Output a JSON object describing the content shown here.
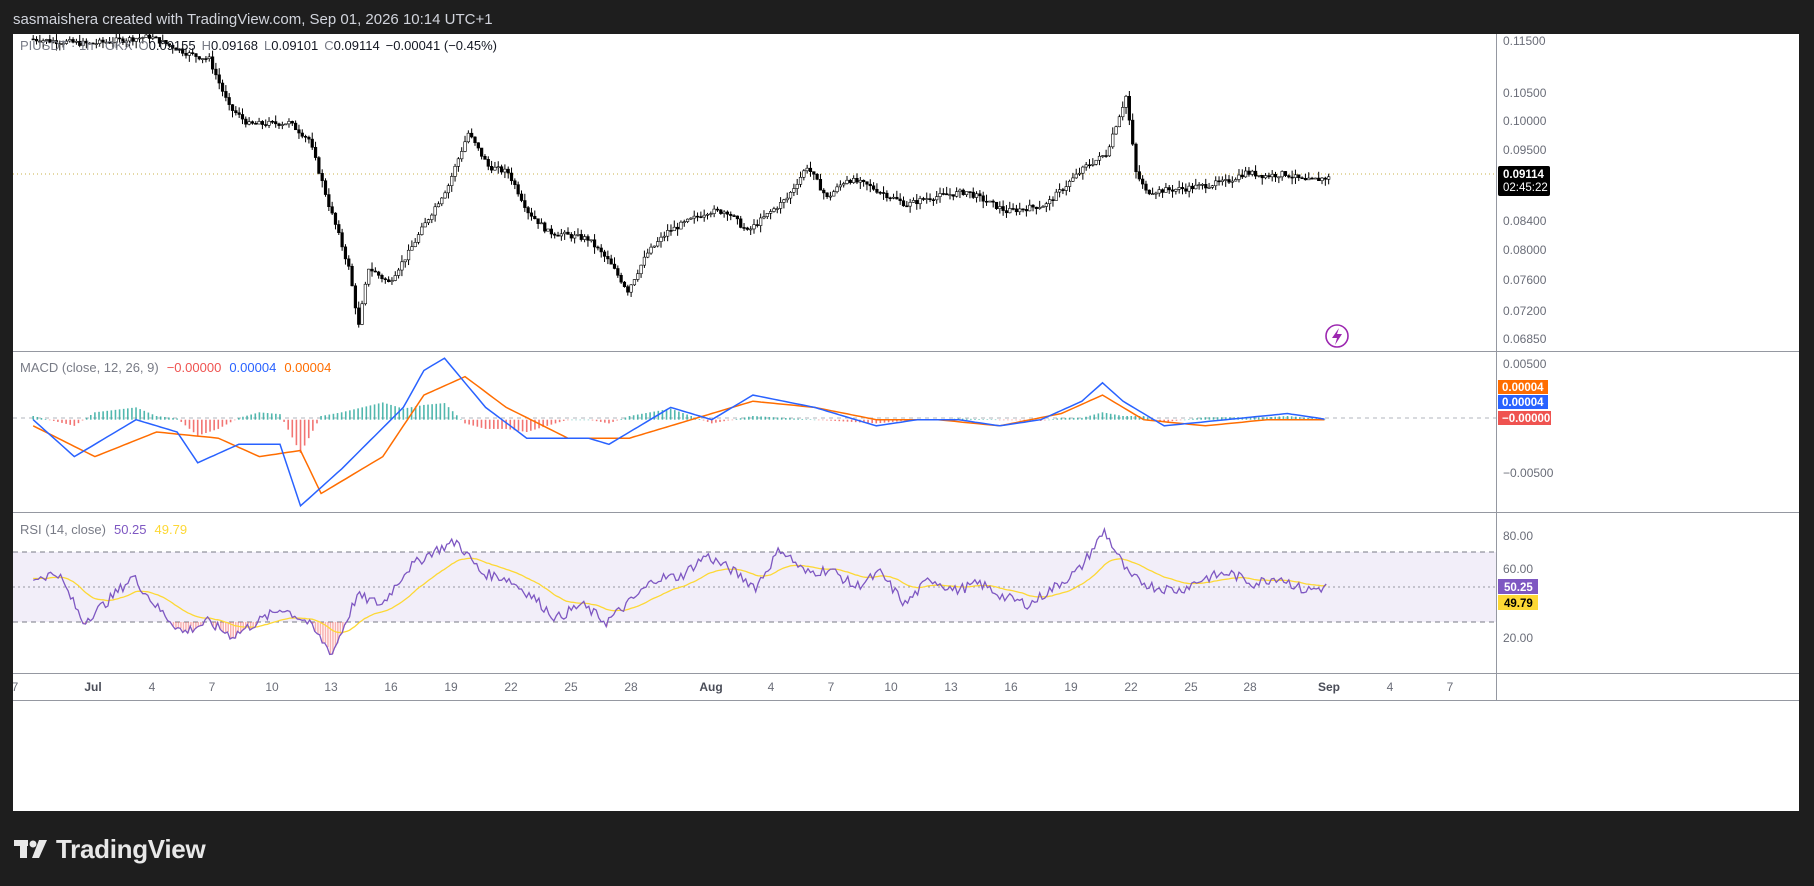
{
  "header": {
    "attribution": "sasmaishera created with TradingView.com, Sep 01, 2026 10:14 UTC+1"
  },
  "legend": {
    "symbol": "PIUSDT",
    "interval": "1h",
    "exchange": "OKX",
    "open_label": "O",
    "open": "0.09155",
    "high_label": "H",
    "high": "0.09168",
    "low_label": "L",
    "low": "0.09101",
    "close_label": "C",
    "close": "0.09114",
    "change": "−0.00041 (−0.45%)"
  },
  "macd_legend": {
    "title": "MACD (close, 12, 26, 9)",
    "hist": "−0.00000",
    "macd": "0.00004",
    "signal": "0.00004"
  },
  "rsi_legend": {
    "title": "RSI (14, close)",
    "rsi": "50.25",
    "ma": "49.79"
  },
  "price_tag": {
    "value": "0.09114",
    "countdown": "02:45:22"
  },
  "macd_tags": {
    "signal": "0.00004",
    "macd": "0.00004",
    "hist": "−0.00000"
  },
  "rsi_tags": {
    "rsi": "50.25",
    "ma": "49.79"
  },
  "axes": {
    "price_ticks": [
      "0.11500",
      "0.10500",
      "0.10000",
      "0.09500",
      "0.08400",
      "0.08000",
      "0.07600",
      "0.07200",
      "0.06850"
    ],
    "macd_ticks": [
      "0.00500",
      "−0.00500"
    ],
    "rsi_ticks": [
      "80.00",
      "60.00",
      "20.00"
    ],
    "time_ticks": [
      "7",
      "Jul",
      "4",
      "7",
      "10",
      "13",
      "16",
      "19",
      "22",
      "25",
      "28",
      "Aug",
      "4",
      "7",
      "10",
      "13",
      "16",
      "19",
      "22",
      "25",
      "28",
      "Sep",
      "4",
      "7"
    ]
  },
  "colors": {
    "up": "#26a69a",
    "down": "#ef5350",
    "candle": "#000000",
    "macd_line": "#2962ff",
    "signal_line": "#ff6d00",
    "rsi_line": "#7e57c2",
    "rsi_ma": "#fdd835",
    "rsi_band": "#7e57c2"
  },
  "chart_data": {
    "type": "candlestick",
    "symbol": "PIUSDT",
    "interval": "1h",
    "exchange": "OKX",
    "y_scale": "log",
    "ylim": [
      0.0675,
      0.117
    ],
    "x_ticks": [
      "Jul 1",
      "Jul 4",
      "Jul 7",
      "Jul 10",
      "Jul 13",
      "Jul 16",
      "Jul 19",
      "Jul 22",
      "Jul 25",
      "Jul 28",
      "Aug 1",
      "Aug 4",
      "Aug 7",
      "Aug 10",
      "Aug 13",
      "Aug 16",
      "Aug 19",
      "Aug 22",
      "Aug 25",
      "Aug 28",
      "Sep 1"
    ],
    "price_path": [
      [
        "Jun 28",
        0.116
      ],
      [
        "Jul 1",
        0.115
      ],
      [
        "Jul 4",
        0.1165
      ],
      [
        "Jul 6",
        0.113
      ],
      [
        "Jul 7",
        0.112
      ],
      [
        "Jul 8",
        0.103
      ],
      [
        "Jul 9",
        0.1
      ],
      [
        "Jul 11",
        0.1003
      ],
      [
        "Jul 12",
        0.0975
      ],
      [
        "Jul 13",
        0.087
      ],
      [
        "Jul 14",
        0.078
      ],
      [
        "Jul 14 12h",
        0.0705
      ],
      [
        "Jul 15",
        0.078
      ],
      [
        "Jul 16",
        0.076
      ],
      [
        "Jul 17",
        0.08
      ],
      [
        "Jul 18",
        0.085
      ],
      [
        "Jul 19",
        0.09
      ],
      [
        "Jul 20",
        0.0985
      ],
      [
        "Jul 21",
        0.093
      ],
      [
        "Jul 22",
        0.092
      ],
      [
        "Jul 23",
        0.086
      ],
      [
        "Jul 24",
        0.083
      ],
      [
        "Jul 26",
        0.082
      ],
      [
        "Jul 27",
        0.079
      ],
      [
        "Jul 28",
        0.075
      ],
      [
        "Jul 29",
        0.08
      ],
      [
        "Jul 30",
        0.083
      ],
      [
        "Aug 1",
        0.086
      ],
      [
        "Aug 2",
        0.086
      ],
      [
        "Aug 3",
        0.083
      ],
      [
        "Aug 5",
        0.088
      ],
      [
        "Aug 6",
        0.093
      ],
      [
        "Aug 7",
        0.088
      ],
      [
        "Aug 8",
        0.091
      ],
      [
        "Aug 9",
        0.09
      ],
      [
        "Aug 11",
        0.087
      ],
      [
        "Aug 12",
        0.088
      ],
      [
        "Aug 14",
        0.089
      ],
      [
        "Aug 16",
        0.086
      ],
      [
        "Aug 18",
        0.087
      ],
      [
        "Aug 20",
        0.093
      ],
      [
        "Aug 21",
        0.095
      ],
      [
        "Aug 22",
        0.105
      ],
      [
        "Aug 22 12h",
        0.092
      ],
      [
        "Aug 23",
        0.089
      ],
      [
        "Aug 25",
        0.0895
      ],
      [
        "Aug 27",
        0.0905
      ],
      [
        "Aug 28",
        0.092
      ],
      [
        "Aug 29",
        0.0915
      ],
      [
        "Aug 30",
        0.0918
      ],
      [
        "Aug 31",
        0.0906
      ],
      [
        "Sep 1",
        0.09114
      ]
    ],
    "last": {
      "open": 0.09155,
      "high": 0.09168,
      "low": 0.09101,
      "close": 0.09114,
      "change": -0.00041,
      "change_pct": -0.45
    },
    "indicators": {
      "macd": {
        "params": [
          12,
          26,
          9
        ],
        "ylim": [
          -0.0075,
          0.0055
        ],
        "macd_path": [
          [
            0,
            0.0
          ],
          [
            2,
            -0.003
          ],
          [
            5,
            0.0
          ],
          [
            7,
            -0.001
          ],
          [
            8,
            -0.0035
          ],
          [
            10,
            -0.002
          ],
          [
            12,
            -0.002
          ],
          [
            13,
            -0.007
          ],
          [
            15,
            -0.004
          ],
          [
            18,
            0.001
          ],
          [
            19,
            0.004
          ],
          [
            20,
            0.005
          ],
          [
            22,
            0.001
          ],
          [
            24,
            -0.0015
          ],
          [
            27,
            -0.0015
          ],
          [
            28,
            -0.002
          ],
          [
            30,
            0.0
          ],
          [
            31,
            0.001
          ],
          [
            33,
            0.0
          ],
          [
            35,
            0.002
          ],
          [
            38,
            0.001
          ],
          [
            41,
            -0.0005
          ],
          [
            43,
            0.0
          ],
          [
            45,
            0.0
          ],
          [
            47,
            -0.0005
          ],
          [
            49,
            0.0
          ],
          [
            51,
            0.0015
          ],
          [
            52,
            0.003
          ],
          [
            53,
            0.0015
          ],
          [
            55,
            -0.0005
          ],
          [
            58,
            0.0
          ],
          [
            61,
            0.0005
          ],
          [
            63,
            0.0
          ]
        ],
        "signal_path": [
          [
            0,
            -0.0005
          ],
          [
            3,
            -0.003
          ],
          [
            6,
            -0.001
          ],
          [
            9,
            -0.0015
          ],
          [
            11,
            -0.003
          ],
          [
            13,
            -0.0025
          ],
          [
            14,
            -0.006
          ],
          [
            17,
            -0.003
          ],
          [
            19,
            0.002
          ],
          [
            21,
            0.0035
          ],
          [
            23,
            0.001
          ],
          [
            26,
            -0.0015
          ],
          [
            29,
            -0.0015
          ],
          [
            32,
            0.0
          ],
          [
            35,
            0.0015
          ],
          [
            38,
            0.001
          ],
          [
            41,
            0.0
          ],
          [
            44,
            0.0
          ],
          [
            47,
            -0.0005
          ],
          [
            50,
            0.0005
          ],
          [
            52,
            0.002
          ],
          [
            54,
            0.0
          ],
          [
            57,
            -0.0005
          ],
          [
            60,
            0.0
          ],
          [
            63,
            0.0
          ]
        ],
        "hist": -0.0,
        "macd": 4e-05,
        "signal": 4e-05
      },
      "rsi": {
        "params": [
          14
        ],
        "ylim": [
          0,
          100
        ],
        "bands": [
          30,
          70
        ],
        "mid": 50,
        "rsi_path": [
          [
            0,
            55
          ],
          [
            1,
            58
          ],
          [
            2,
            30
          ],
          [
            3,
            42
          ],
          [
            4,
            56
          ],
          [
            5,
            38
          ],
          [
            6,
            24
          ],
          [
            7,
            30
          ],
          [
            8,
            22
          ],
          [
            9,
            30
          ],
          [
            10,
            38
          ],
          [
            11,
            30
          ],
          [
            12,
            12
          ],
          [
            13,
            45
          ],
          [
            14,
            40
          ],
          [
            15,
            60
          ],
          [
            16,
            70
          ],
          [
            17,
            76
          ],
          [
            18,
            58
          ],
          [
            19,
            55
          ],
          [
            20,
            45
          ],
          [
            21,
            32
          ],
          [
            22,
            40
          ],
          [
            23,
            30
          ],
          [
            24,
            42
          ],
          [
            25,
            55
          ],
          [
            26,
            56
          ],
          [
            27,
            68
          ],
          [
            28,
            60
          ],
          [
            29,
            50
          ],
          [
            30,
            72
          ],
          [
            31,
            58
          ],
          [
            32,
            60
          ],
          [
            33,
            50
          ],
          [
            34,
            58
          ],
          [
            35,
            40
          ],
          [
            36,
            55
          ],
          [
            37,
            48
          ],
          [
            38,
            52
          ],
          [
            39,
            44
          ],
          [
            40,
            40
          ],
          [
            41,
            50
          ],
          [
            42,
            60
          ],
          [
            43,
            82
          ],
          [
            44,
            56
          ],
          [
            45,
            50
          ],
          [
            46,
            48
          ],
          [
            47,
            55
          ],
          [
            48,
            58
          ],
          [
            49,
            52
          ],
          [
            50,
            56
          ],
          [
            51,
            48
          ],
          [
            52,
            50
          ]
        ],
        "rsi": 50.25,
        "ma": 49.79
      }
    }
  }
}
